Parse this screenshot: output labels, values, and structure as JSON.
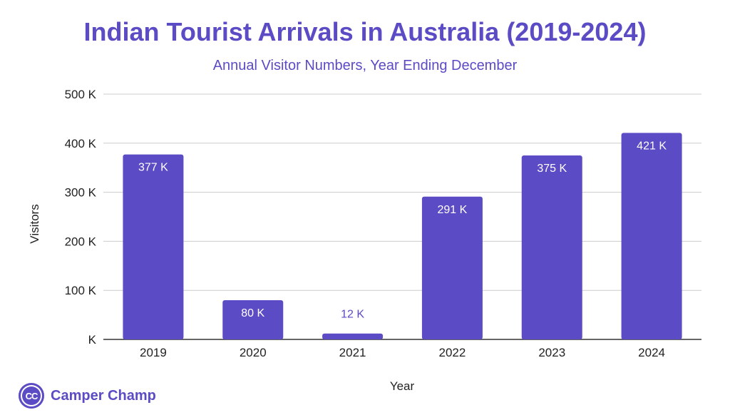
{
  "chart_data": {
    "type": "bar",
    "title": "Indian Tourist Arrivals in Australia (2019-2024)",
    "subtitle": "Annual Visitor Numbers, Year Ending December",
    "xlabel": "Year",
    "ylabel": "Visitors",
    "categories": [
      "2019",
      "2020",
      "2021",
      "2022",
      "2023",
      "2024"
    ],
    "values": [
      377,
      80,
      12,
      291,
      375,
      421
    ],
    "data_labels": [
      "377 K",
      "80 K",
      "12 K",
      "291 K",
      "375 K",
      "421 K"
    ],
    "units": "thousands of visitors",
    "ylim": [
      0,
      500
    ],
    "yticks": [
      0,
      100,
      200,
      300,
      400,
      500
    ],
    "ytick_labels": [
      "K",
      "100 K",
      "200 K",
      "300 K",
      "400 K",
      "500 K"
    ],
    "grid": true,
    "legend": "none",
    "bar_color": "#5b4bc4"
  },
  "brand": {
    "logo_text": "CC",
    "name": "Camper Champ"
  }
}
